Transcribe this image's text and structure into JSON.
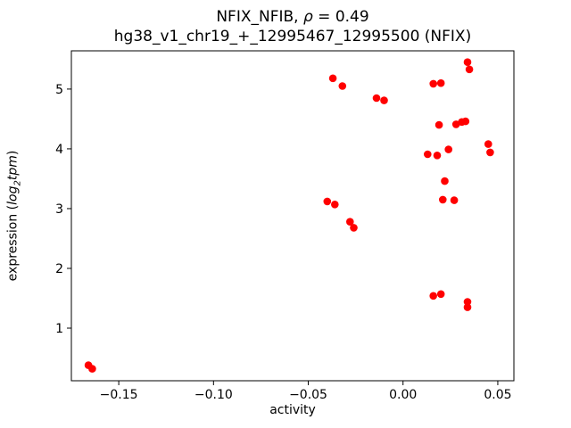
{
  "chart_data": {
    "type": "scatter",
    "title": {
      "prefix": "NFIX_NFIB, ",
      "rho": "ρ",
      "suffix": " = 0.49",
      "line2": "hg38_v1_chr19_+_12995467_12995500 (NFIX)"
    },
    "xlabel": "activity",
    "ylabel": {
      "prefix": "expression (",
      "log": "log",
      "sub": "2",
      "tpm": "tpm",
      "suffix": ")"
    },
    "xlim": [
      -0.175,
      0.0585
    ],
    "ylim": [
      0.12,
      5.64
    ],
    "xticks": [
      -0.15,
      -0.1,
      -0.05,
      0.0,
      0.05
    ],
    "xtick_labels": [
      "−0.15",
      "−0.10",
      "−0.05",
      "0.00",
      "0.05"
    ],
    "yticks": [
      1,
      2,
      3,
      4,
      5
    ],
    "ytick_labels": [
      "1",
      "2",
      "3",
      "4",
      "5"
    ],
    "marker_color": "#ff0000",
    "axis_color": "#000000",
    "legend": "none",
    "grid": false,
    "points": [
      [
        -0.166,
        0.38
      ],
      [
        -0.164,
        0.32
      ],
      [
        -0.04,
        3.12
      ],
      [
        -0.036,
        3.07
      ],
      [
        -0.037,
        5.18
      ],
      [
        -0.032,
        5.05
      ],
      [
        -0.028,
        2.78
      ],
      [
        -0.026,
        2.68
      ],
      [
        -0.014,
        4.85
      ],
      [
        -0.01,
        4.81
      ],
      [
        0.013,
        3.91
      ],
      [
        0.016,
        5.09
      ],
      [
        0.02,
        5.1
      ],
      [
        0.018,
        3.89
      ],
      [
        0.019,
        4.4
      ],
      [
        0.022,
        3.46
      ],
      [
        0.024,
        3.99
      ],
      [
        0.021,
        3.15
      ],
      [
        0.027,
        3.14
      ],
      [
        0.028,
        4.41
      ],
      [
        0.031,
        4.45
      ],
      [
        0.033,
        4.46
      ],
      [
        0.034,
        5.45
      ],
      [
        0.035,
        5.33
      ],
      [
        0.016,
        1.54
      ],
      [
        0.02,
        1.57
      ],
      [
        0.034,
        1.44
      ],
      [
        0.034,
        1.35
      ],
      [
        0.045,
        4.08
      ],
      [
        0.046,
        3.94
      ]
    ]
  }
}
